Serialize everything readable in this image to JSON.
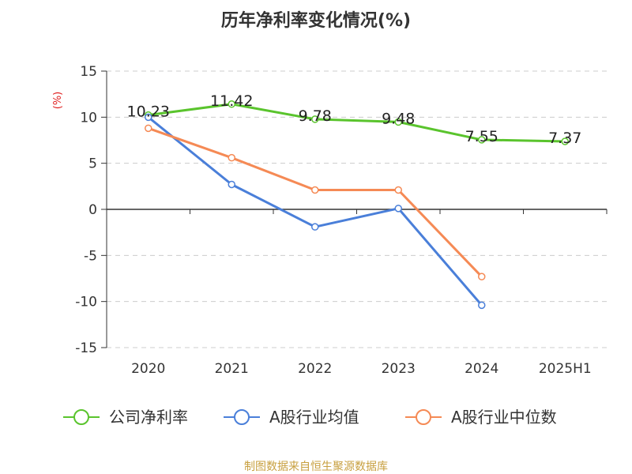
{
  "chart_data": {
    "type": "line",
    "title": "历年净利率变化情况(%)",
    "ylabel": "(%)",
    "xlabel": "",
    "categories": [
      "2020",
      "2021",
      "2022",
      "2023",
      "2024",
      "2025H1"
    ],
    "ylim": [
      -15,
      15
    ],
    "yticks": [
      15,
      10,
      5,
      0,
      -5,
      -10,
      -15
    ],
    "grid": true,
    "legend_position": "bottom",
    "series": [
      {
        "name": "公司净利率",
        "color": "#5ac42d",
        "values": [
          10.23,
          11.42,
          9.78,
          9.48,
          7.55,
          7.37
        ],
        "show_labels": true
      },
      {
        "name": "A股行业均值",
        "color": "#4a7fd9",
        "values": [
          10.0,
          2.7,
          -1.9,
          0.1,
          -10.4,
          null
        ],
        "show_labels": false
      },
      {
        "name": "A股行业中位数",
        "color": "#f58a55",
        "values": [
          8.8,
          5.6,
          2.1,
          2.1,
          -7.3,
          null
        ],
        "show_labels": false
      }
    ]
  },
  "source": "制图数据来自恒生聚源数据库"
}
